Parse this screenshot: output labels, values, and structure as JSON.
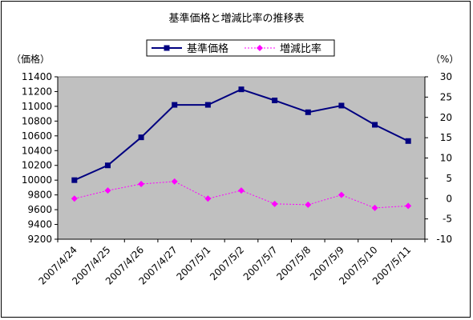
{
  "chart_data": {
    "type": "line",
    "title": "基準価格と増減比率の推移表",
    "y_left_label": "（価格）",
    "y_right_label": "（%）",
    "categories": [
      "2007/4/24",
      "2007/4/25",
      "2007/4/26",
      "2007/4/27",
      "2007/5/1",
      "2007/5/2",
      "2007/5/7",
      "2007/5/8",
      "2007/5/9",
      "2007/5/10",
      "2007/5/11"
    ],
    "series": [
      {
        "name": "基準価格",
        "axis": "left",
        "color": "#000080",
        "marker": "square",
        "line": "solid",
        "values": [
          10000,
          10200,
          10580,
          11020,
          11020,
          11230,
          11080,
          10920,
          11010,
          10750,
          10530
        ]
      },
      {
        "name": "増減比率",
        "axis": "right",
        "color": "#ff00ff",
        "marker": "diamond",
        "line": "dotted",
        "values": [
          0,
          2,
          3.6,
          4.2,
          0,
          2,
          -1.3,
          -1.5,
          0.9,
          -2.3,
          -1.8
        ]
      }
    ],
    "y_left": {
      "min": 9200,
      "max": 11400,
      "step": 200,
      "ticks": [
        "9200",
        "9400",
        "9600",
        "9800",
        "10000",
        "10200",
        "10400",
        "10600",
        "10800",
        "11000",
        "11200",
        "11400"
      ]
    },
    "y_right": {
      "min": -10,
      "max": 30,
      "step": 5,
      "ticks": [
        "-10",
        "-5",
        "0",
        "5",
        "10",
        "15",
        "20",
        "25",
        "30"
      ]
    },
    "legend_position": "top",
    "plot_background": "#c0c0c0",
    "grid": false
  }
}
